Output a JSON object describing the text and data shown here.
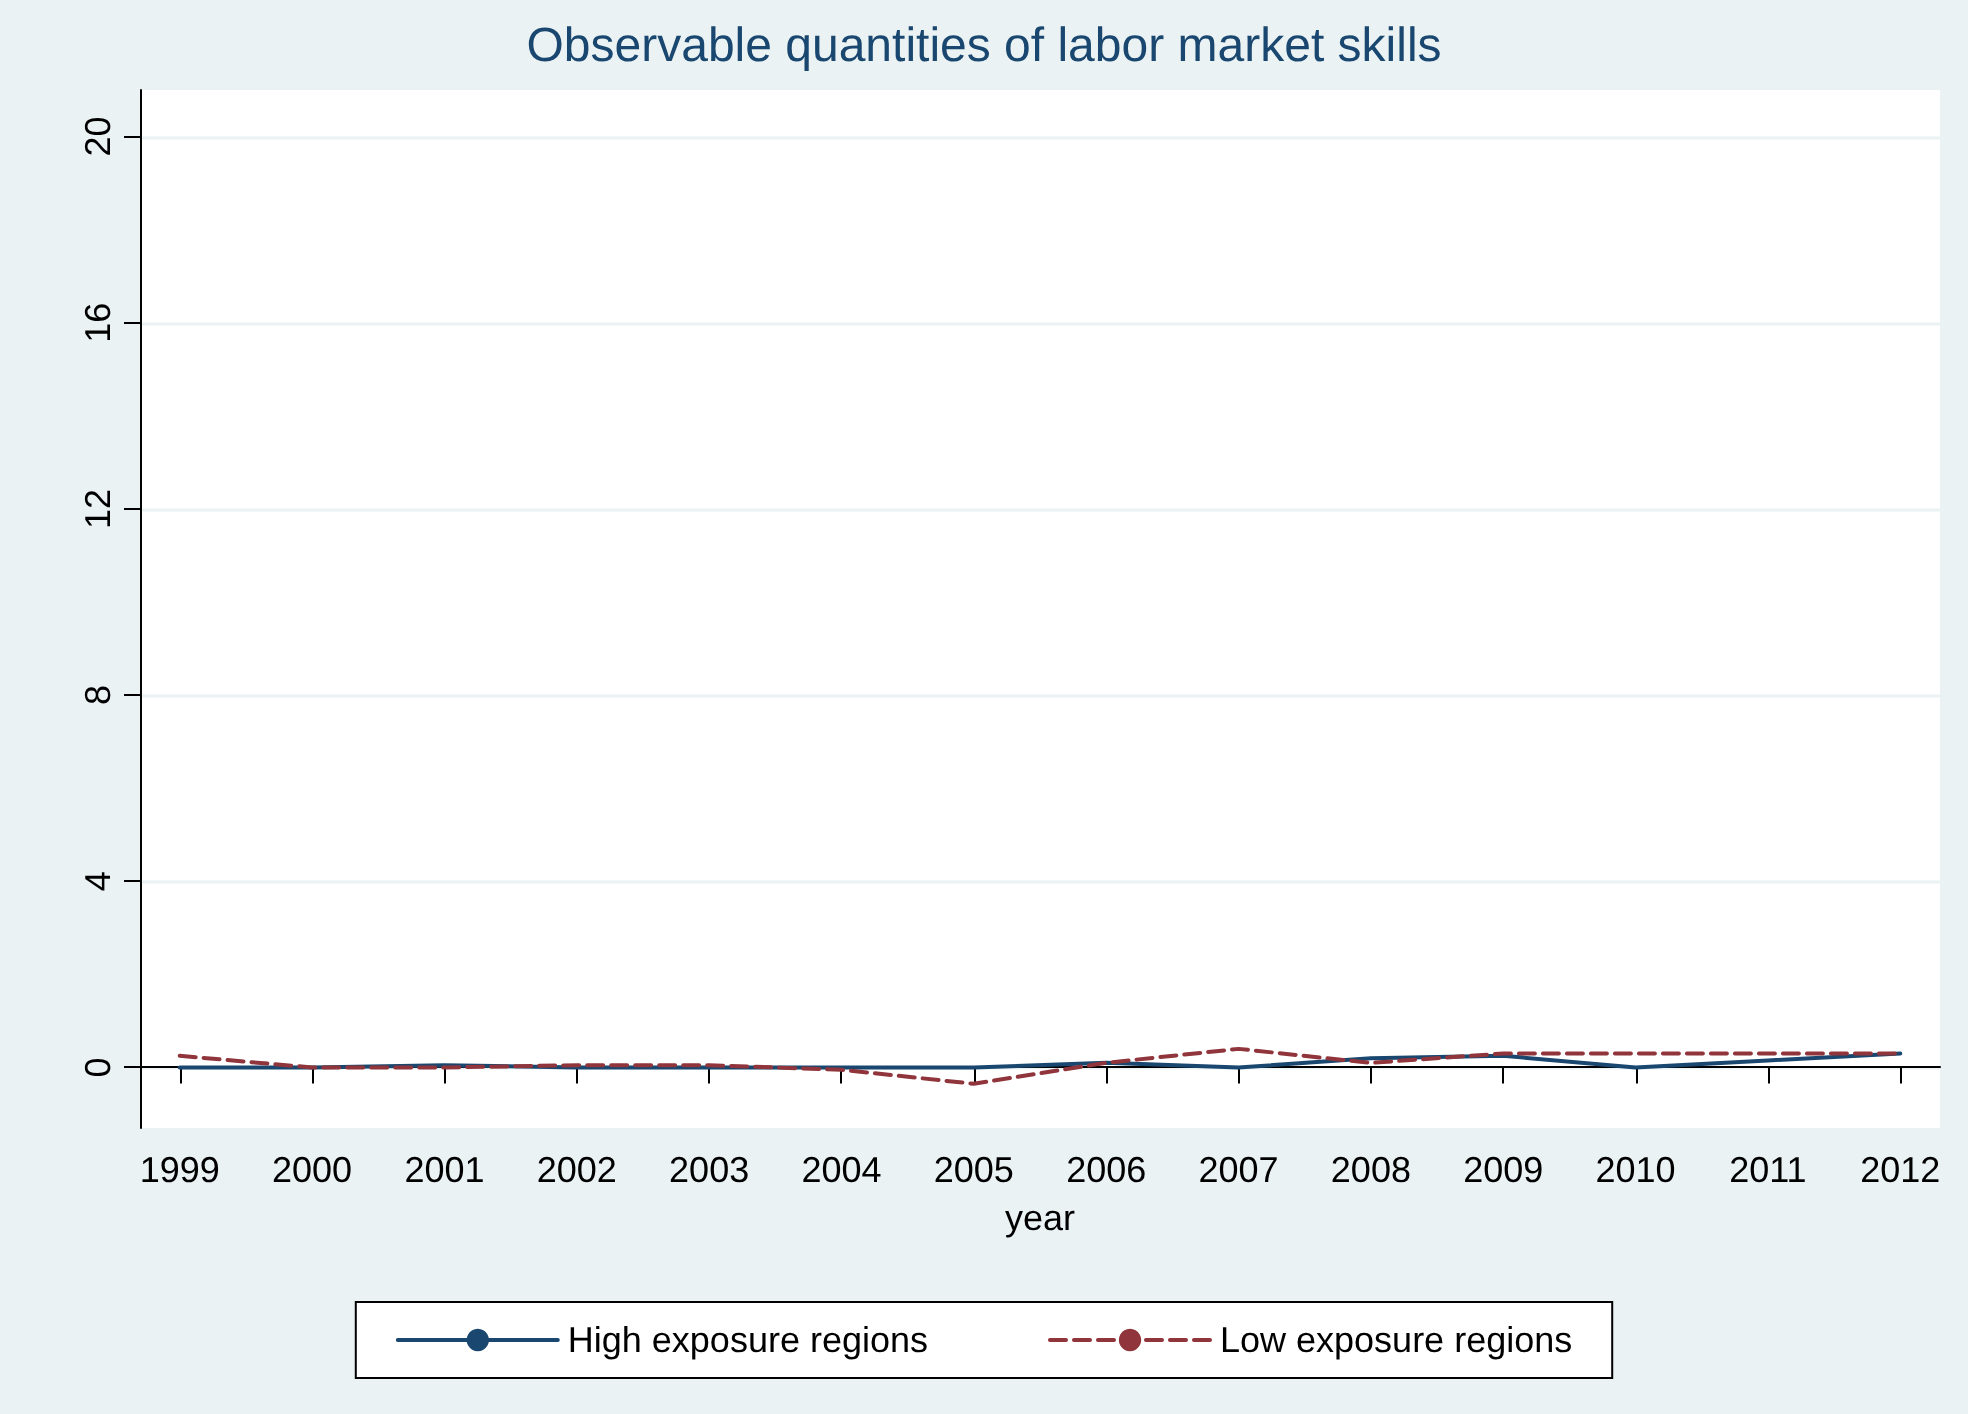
{
  "chart_data": {
    "type": "line",
    "title": "Observable quantities of labor market skills",
    "xlabel": "year",
    "x": [
      1999,
      2000,
      2001,
      2002,
      2003,
      2004,
      2005,
      2006,
      2007,
      2008,
      2009,
      2010,
      2011,
      2012
    ],
    "series": [
      {
        "name": "High exposure regions",
        "color": "#1a476f",
        "line_style": "solid",
        "values": [
          0,
          0,
          0.05,
          0,
          0,
          0,
          0,
          0.1,
          0,
          0.2,
          0.25,
          0,
          0.15,
          0.3
        ]
      },
      {
        "name": "Low exposure regions",
        "color": "#90353b",
        "line_style": "dashed",
        "values": [
          0.25,
          0,
          0,
          0.05,
          0.05,
          -0.05,
          -0.35,
          0.1,
          0.4,
          0.1,
          0.3,
          0.3,
          0.3,
          0.3
        ]
      }
    ],
    "xlim": [
      1998.7,
      2012.3
    ],
    "xticks": [
      1999,
      2000,
      2001,
      2002,
      2003,
      2004,
      2005,
      2006,
      2007,
      2008,
      2009,
      2010,
      2011,
      2012
    ],
    "ylim": [
      -1.3,
      21
    ],
    "yticks": [
      0,
      4,
      8,
      12,
      16,
      20
    ],
    "grid": "y",
    "legend": "bottom",
    "marker": "none"
  }
}
